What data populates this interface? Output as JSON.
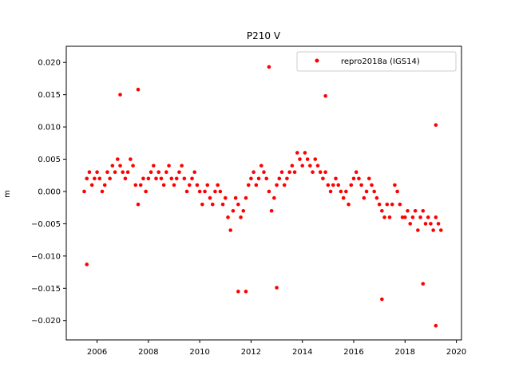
{
  "chart_data": {
    "type": "scatter",
    "title": "P210 V",
    "xlabel": "",
    "ylabel": "m",
    "xlim": [
      2004.8,
      2020.2
    ],
    "ylim": [
      -0.023,
      0.0225
    ],
    "x_ticks": [
      2006,
      2008,
      2010,
      2012,
      2014,
      2016,
      2018,
      2020
    ],
    "y_ticks": [
      -0.02,
      -0.015,
      -0.01,
      -0.005,
      0.0,
      0.005,
      0.01,
      0.015,
      0.02
    ],
    "x_tick_labels": [
      "2006",
      "2008",
      "2010",
      "2012",
      "2014",
      "2016",
      "2018",
      "2020"
    ],
    "y_tick_labels": [
      "−0.020",
      "−0.015",
      "−0.010",
      "−0.005",
      "0.000",
      "0.005",
      "0.010",
      "0.015",
      "0.020"
    ],
    "grid": false,
    "legend_position": "top-right",
    "series": [
      {
        "name": "repro2018a (IGS14)",
        "color": "#ff0000",
        "marker": "circle",
        "x": [
          2005.5,
          2005.6,
          2005.7,
          2005.8,
          2005.9,
          2006.0,
          2006.1,
          2006.2,
          2006.3,
          2006.4,
          2006.5,
          2006.6,
          2006.7,
          2006.8,
          2006.9,
          2007.0,
          2007.1,
          2007.2,
          2007.3,
          2007.4,
          2007.5,
          2007.6,
          2007.7,
          2007.8,
          2007.9,
          2008.0,
          2008.1,
          2008.2,
          2008.3,
          2008.4,
          2008.5,
          2008.6,
          2008.7,
          2008.8,
          2008.9,
          2009.0,
          2009.1,
          2009.2,
          2009.3,
          2009.4,
          2009.5,
          2009.6,
          2009.7,
          2009.8,
          2009.9,
          2010.0,
          2010.1,
          2010.2,
          2010.3,
          2010.4,
          2010.5,
          2010.6,
          2010.7,
          2010.8,
          2010.9,
          2011.0,
          2011.1,
          2011.2,
          2011.3,
          2011.4,
          2011.5,
          2011.6,
          2011.7,
          2011.8,
          2011.9,
          2012.0,
          2012.1,
          2012.2,
          2012.3,
          2012.4,
          2012.5,
          2012.6,
          2012.7,
          2012.8,
          2012.9,
          2013.0,
          2013.1,
          2013.2,
          2013.3,
          2013.4,
          2013.5,
          2013.6,
          2013.7,
          2013.8,
          2013.9,
          2014.0,
          2014.1,
          2014.2,
          2014.3,
          2014.4,
          2014.5,
          2014.6,
          2014.7,
          2014.8,
          2014.9,
          2015.0,
          2015.1,
          2015.2,
          2015.3,
          2015.4,
          2015.5,
          2015.6,
          2015.7,
          2015.8,
          2015.9,
          2016.0,
          2016.1,
          2016.2,
          2016.3,
          2016.4,
          2016.5,
          2016.6,
          2016.7,
          2016.8,
          2016.9,
          2017.0,
          2017.1,
          2017.2,
          2017.3,
          2017.4,
          2017.5,
          2017.6,
          2017.7,
          2017.8,
          2017.9,
          2018.0,
          2018.1,
          2018.2,
          2018.3,
          2018.4,
          2018.5,
          2018.6,
          2018.7,
          2018.8,
          2018.9,
          2019.0,
          2019.1,
          2019.2,
          2019.3,
          2019.4,
          2012.7,
          2007.6,
          2006.9,
          2014.9,
          2019.2,
          2011.5,
          2011.8,
          2013.0,
          2019.2,
          2017.1,
          2005.6,
          2018.7
        ],
        "y": [
          0.0,
          0.002,
          0.003,
          0.001,
          0.002,
          0.003,
          0.002,
          0.0,
          0.001,
          0.003,
          0.002,
          0.004,
          0.003,
          0.005,
          0.004,
          0.003,
          0.002,
          0.003,
          0.005,
          0.004,
          0.001,
          -0.002,
          0.001,
          0.002,
          0.0,
          0.002,
          0.003,
          0.004,
          0.002,
          0.003,
          0.002,
          0.001,
          0.003,
          0.004,
          0.002,
          0.001,
          0.002,
          0.003,
          0.004,
          0.002,
          0.0,
          0.001,
          0.002,
          0.003,
          0.001,
          0.0,
          -0.002,
          0.0,
          0.001,
          -0.001,
          -0.002,
          0.0,
          0.001,
          0.0,
          -0.002,
          -0.001,
          -0.004,
          -0.006,
          -0.003,
          -0.001,
          -0.002,
          -0.004,
          -0.003,
          -0.001,
          0.001,
          0.002,
          0.003,
          0.001,
          0.002,
          0.004,
          0.003,
          0.002,
          0.0,
          -0.003,
          -0.001,
          0.001,
          0.002,
          0.003,
          0.001,
          0.002,
          0.003,
          0.004,
          0.003,
          0.006,
          0.005,
          0.004,
          0.006,
          0.005,
          0.004,
          0.003,
          0.005,
          0.004,
          0.003,
          0.002,
          0.003,
          0.001,
          0.0,
          0.001,
          0.002,
          0.001,
          0.0,
          -0.001,
          0.0,
          -0.002,
          0.001,
          0.002,
          0.003,
          0.002,
          0.001,
          -0.001,
          0.0,
          0.002,
          0.001,
          0.0,
          -0.001,
          -0.002,
          -0.003,
          -0.004,
          -0.002,
          -0.004,
          -0.002,
          0.001,
          0.0,
          -0.002,
          -0.004,
          -0.004,
          -0.003,
          -0.005,
          -0.004,
          -0.003,
          -0.006,
          -0.004,
          -0.003,
          -0.005,
          -0.004,
          -0.005,
          -0.006,
          -0.004,
          -0.005,
          -0.006,
          0.0193,
          0.0158,
          0.015,
          0.0148,
          0.0103,
          -0.0155,
          -0.0155,
          -0.0149,
          -0.0208,
          -0.0167,
          -0.0113,
          -0.0143
        ]
      }
    ]
  }
}
